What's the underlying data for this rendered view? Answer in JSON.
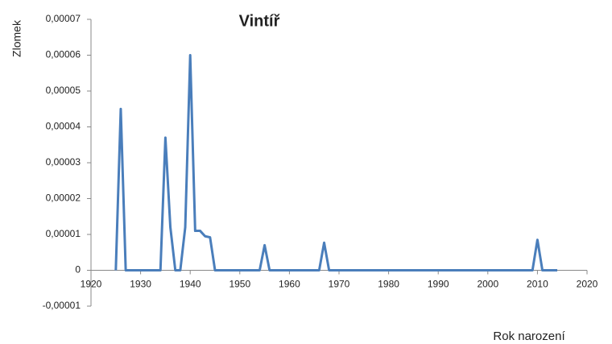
{
  "chart_data": {
    "type": "line",
    "title": "Vintíř",
    "x_label": "Rok narození",
    "y_label": "Zlomek",
    "x": [
      1925,
      1926,
      1927,
      1928,
      1929,
      1930,
      1931,
      1932,
      1933,
      1934,
      1935,
      1936,
      1937,
      1938,
      1939,
      1940,
      1941,
      1942,
      1943,
      1944,
      1945,
      1946,
      1947,
      1948,
      1949,
      1950,
      1951,
      1952,
      1953,
      1954,
      1955,
      1956,
      1957,
      1958,
      1959,
      1960,
      1961,
      1962,
      1963,
      1964,
      1965,
      1966,
      1967,
      1968,
      1969,
      1970,
      1971,
      1972,
      1973,
      1974,
      1975,
      1976,
      1977,
      1978,
      1979,
      1980,
      1981,
      1982,
      1983,
      1984,
      1985,
      1986,
      1987,
      1988,
      1989,
      1990,
      1991,
      1992,
      1993,
      1994,
      1995,
      1996,
      1997,
      1998,
      1999,
      2000,
      2001,
      2002,
      2003,
      2004,
      2005,
      2006,
      2007,
      2008,
      2009,
      2010,
      2011,
      2012,
      2013,
      2014
    ],
    "series": [
      {
        "color": "#4a7ebb",
        "values": [
          0,
          4.5e-05,
          0,
          0,
          0,
          0,
          0,
          0,
          0,
          0,
          3.7e-05,
          1.2e-05,
          0,
          0,
          1.2e-05,
          6e-05,
          1.1e-05,
          1.1e-05,
          9.5e-06,
          9.2e-06,
          0,
          0,
          0,
          0,
          0,
          0,
          0,
          0,
          0,
          0,
          7e-06,
          0,
          0,
          0,
          0,
          0,
          0,
          0,
          0,
          0,
          0,
          0,
          7.7e-06,
          0,
          0,
          0,
          0,
          0,
          0,
          0,
          0,
          0,
          0,
          0,
          0,
          0,
          0,
          0,
          0,
          0,
          0,
          0,
          0,
          0,
          0,
          0,
          0,
          0,
          0,
          0,
          0,
          0,
          0,
          0,
          0,
          0,
          0,
          0,
          0,
          0,
          0,
          0,
          0,
          0,
          0,
          8.5e-06,
          0,
          0,
          0,
          0
        ]
      }
    ],
    "xlim": [
      1920,
      2020
    ],
    "xticks": [
      1920,
      1930,
      1940,
      1950,
      1960,
      1970,
      1980,
      1990,
      2000,
      2010,
      2020
    ],
    "ylim": [
      -1e-05,
      7e-05
    ],
    "yticks": [
      {
        "value": -1e-05,
        "label": "-0,00001"
      },
      {
        "value": 0,
        "label": "0"
      },
      {
        "value": 1e-05,
        "label": "0,00001"
      },
      {
        "value": 2e-05,
        "label": "0,00002"
      },
      {
        "value": 3e-05,
        "label": "0,00003"
      },
      {
        "value": 4e-05,
        "label": "0,00004"
      },
      {
        "value": 5e-05,
        "label": "0,00005"
      },
      {
        "value": 6e-05,
        "label": "0,00006"
      },
      {
        "value": 7e-05,
        "label": "0,00007"
      }
    ],
    "grid": false
  }
}
